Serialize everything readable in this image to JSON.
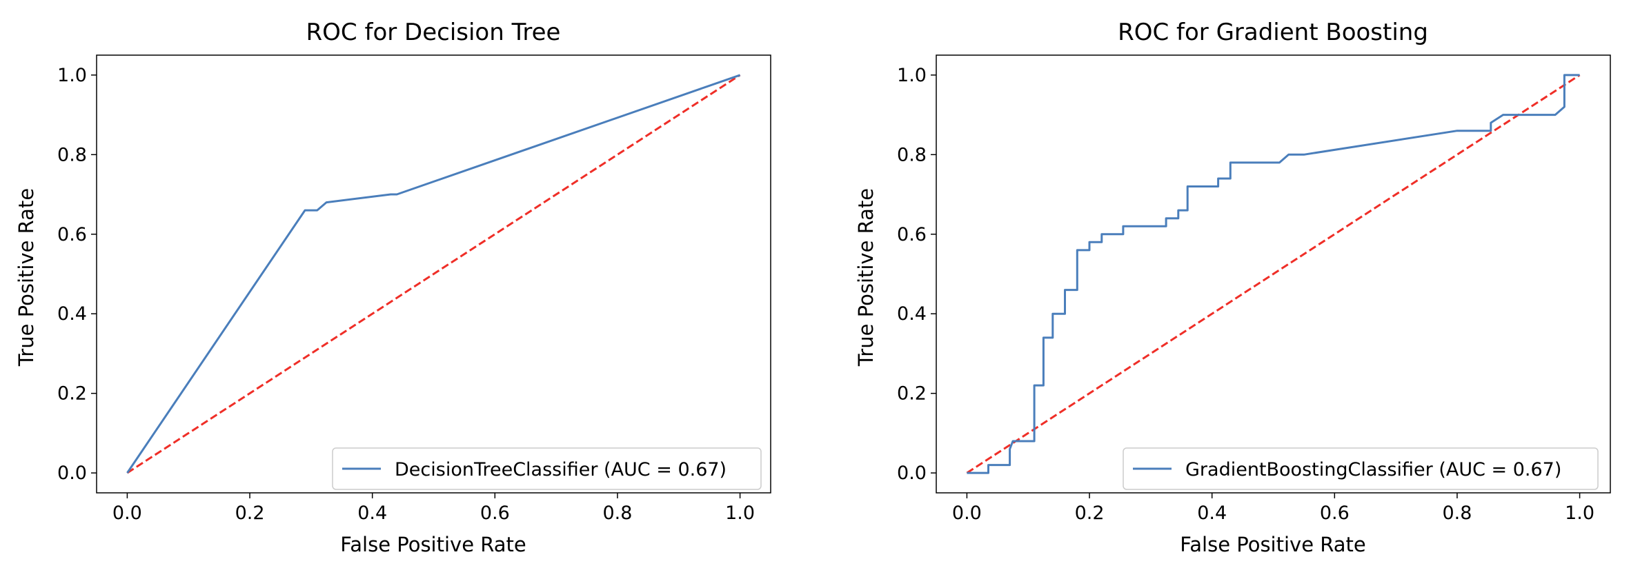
{
  "colors": {
    "roc_curve": "#4a7ebb",
    "chance_line": "#ef2e27",
    "axes": "#000000",
    "background": "#ffffff"
  },
  "chart_data": [
    {
      "type": "line",
      "title": "ROC for Decision Tree",
      "xlabel": "False Positive Rate",
      "ylabel": "True Positive Rate",
      "xlim": [
        -0.05,
        1.05
      ],
      "ylim": [
        -0.05,
        1.05
      ],
      "xticks": [
        "0.0",
        "0.2",
        "0.4",
        "0.6",
        "0.8",
        "1.0"
      ],
      "yticks": [
        "0.0",
        "0.2",
        "0.4",
        "0.6",
        "0.8",
        "1.0"
      ],
      "grid": false,
      "legend_position": "lower right",
      "series": [
        {
          "name": "DecisionTreeClassifier (AUC = 0.67)",
          "style": "solid",
          "color": "#4a7ebb",
          "x": [
            0.0,
            0.29,
            0.31,
            0.325,
            0.43,
            0.44,
            1.0
          ],
          "y": [
            0.0,
            0.66,
            0.66,
            0.68,
            0.7,
            0.7,
            1.0
          ]
        },
        {
          "style": "dashed",
          "color": "#ef2e27",
          "x": [
            0.0,
            1.0
          ],
          "y": [
            0.0,
            1.0
          ]
        }
      ]
    },
    {
      "type": "line",
      "title": "ROC for Gradient Boosting",
      "xlabel": "False Positive Rate",
      "ylabel": "True Positive Rate",
      "xlim": [
        -0.05,
        1.05
      ],
      "ylim": [
        -0.05,
        1.05
      ],
      "xticks": [
        "0.0",
        "0.2",
        "0.4",
        "0.6",
        "0.8",
        "1.0"
      ],
      "yticks": [
        "0.0",
        "0.2",
        "0.4",
        "0.6",
        "0.8",
        "1.0"
      ],
      "grid": false,
      "legend_position": "lower right",
      "series": [
        {
          "name": "GradientBoostingClassifier (AUC = 0.67)",
          "style": "solid",
          "color": "#4a7ebb",
          "x": [
            0.0,
            0.0,
            0.035,
            0.035,
            0.07,
            0.07,
            0.075,
            0.11,
            0.11,
            0.125,
            0.125,
            0.14,
            0.14,
            0.16,
            0.16,
            0.18,
            0.18,
            0.2,
            0.2,
            0.22,
            0.22,
            0.255,
            0.255,
            0.325,
            0.325,
            0.345,
            0.345,
            0.36,
            0.36,
            0.41,
            0.41,
            0.43,
            0.43,
            0.51,
            0.525,
            0.55,
            0.8,
            0.855,
            0.855,
            0.875,
            0.96,
            0.975,
            0.975,
            1.0
          ],
          "y": [
            0.0,
            0.0,
            0.0,
            0.02,
            0.02,
            0.06,
            0.08,
            0.08,
            0.22,
            0.22,
            0.34,
            0.34,
            0.4,
            0.4,
            0.46,
            0.46,
            0.56,
            0.56,
            0.58,
            0.58,
            0.6,
            0.6,
            0.62,
            0.62,
            0.64,
            0.64,
            0.66,
            0.66,
            0.72,
            0.72,
            0.74,
            0.74,
            0.78,
            0.78,
            0.8,
            0.8,
            0.86,
            0.86,
            0.88,
            0.9,
            0.9,
            0.92,
            1.0,
            1.0
          ]
        },
        {
          "style": "dashed",
          "color": "#ef2e27",
          "x": [
            0.0,
            1.0
          ],
          "y": [
            0.0,
            1.0
          ]
        }
      ]
    }
  ]
}
